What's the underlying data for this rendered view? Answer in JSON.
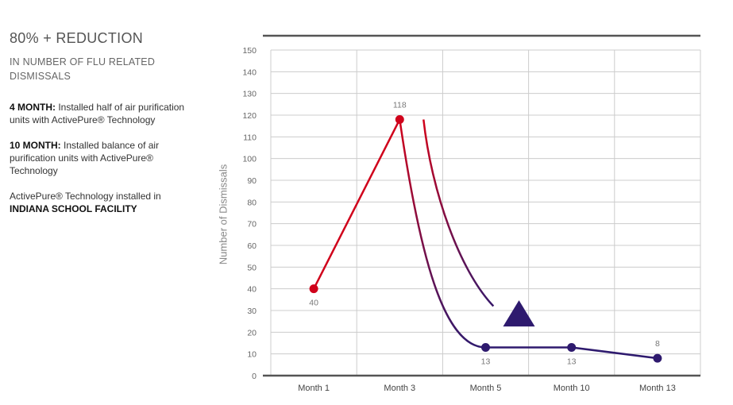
{
  "panel": {
    "headline": "80% + REDUCTION",
    "subhead": "IN NUMBER OF FLU RELATED DISMISSALS",
    "note1_bold": "4 MONTH:",
    "note1_text": " Installed half of air purification units with ActivePure® Technology",
    "note2_bold": "10 MONTH:",
    "note2_text": " Installed balance of air purification units with ActivePure® Technology",
    "note3_text": "ActivePure® Technology installed in ",
    "note3_bold": "INDIANA SCHOOL FACILITY"
  },
  "chart_data": {
    "type": "line",
    "categories": [
      "Month 1",
      "Month 3",
      "Month 5",
      "Month 10",
      "Month 13"
    ],
    "values": [
      40,
      118,
      13,
      13,
      8
    ],
    "data_labels": [
      "40",
      "118",
      "13",
      "13",
      "8"
    ],
    "ylabel": "Number of Dismissals",
    "xlabel": "",
    "ylim": [
      0,
      150
    ],
    "yticks": [
      0,
      10,
      20,
      30,
      40,
      50,
      60,
      70,
      80,
      90,
      100,
      110,
      120,
      130,
      140,
      150
    ],
    "grid": true,
    "colors": {
      "rising": "#d0021b",
      "falling_end": "#2e1a6e",
      "arrow": "#2e1a6e",
      "grid": "#cccccc",
      "axis": "#555555"
    }
  }
}
